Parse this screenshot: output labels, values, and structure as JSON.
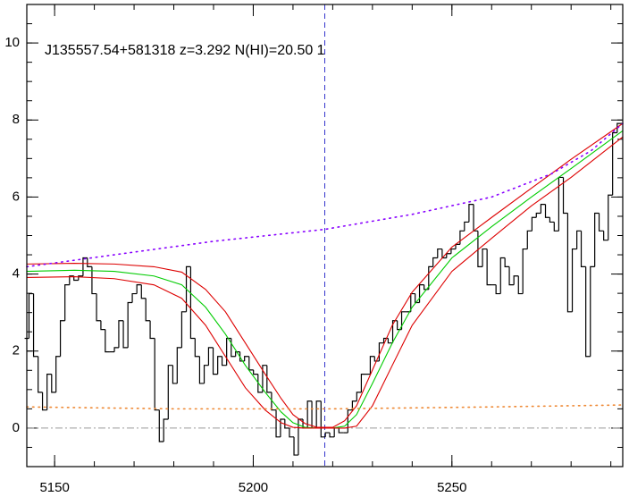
{
  "chart_data": {
    "type": "line",
    "title": "J135557.54+581318 z=3.292 N(HI)=20.50 1",
    "xlim": [
      5143,
      5293
    ],
    "ylim": [
      -1,
      11
    ],
    "xticks": [
      5150,
      5200,
      5250
    ],
    "yticks": [
      0,
      2,
      4,
      6,
      8,
      10
    ],
    "minor_xstep": 10,
    "minor_ystep": 0.5,
    "zero_line": 0,
    "vline": 5218,
    "series": [
      {
        "name": "flux",
        "style": "step",
        "color": "#000000",
        "x": [
          5143.0,
          5144.1,
          5145.3,
          5146.4,
          5147.5,
          5148.7,
          5149.8,
          5150.9,
          5152.0,
          5153.2,
          5154.3,
          5155.4,
          5156.6,
          5157.7,
          5158.8,
          5160.0,
          5161.1,
          5162.2,
          5163.3,
          5164.5,
          5165.6,
          5166.7,
          5167.9,
          5169.0,
          5170.1,
          5171.3,
          5172.4,
          5173.5,
          5174.6,
          5175.8,
          5176.9,
          5178.0,
          5179.2,
          5180.3,
          5181.4,
          5182.6,
          5183.7,
          5184.8,
          5185.9,
          5187.1,
          5188.2,
          5189.3,
          5190.5,
          5191.6,
          5192.7,
          5193.9,
          5195.0,
          5196.1,
          5197.2,
          5198.4,
          5199.5,
          5200.6,
          5201.8,
          5202.9,
          5204.0,
          5205.2,
          5206.3,
          5207.4,
          5208.5,
          5209.7,
          5210.8,
          5211.9,
          5213.1,
          5214.2,
          5215.3,
          5216.5,
          5217.6,
          5218.7,
          5219.8,
          5221.0,
          5222.1,
          5223.2,
          5224.4,
          5225.5,
          5226.6,
          5227.8,
          5228.9,
          5230.0,
          5231.1,
          5232.3,
          5233.4,
          5234.5,
          5235.7,
          5236.8,
          5237.9,
          5239.1,
          5240.2,
          5241.3,
          5242.4,
          5243.6,
          5244.7,
          5245.8,
          5247.0,
          5248.1,
          5249.2,
          5250.4,
          5251.5,
          5252.6,
          5253.7,
          5254.9,
          5256.0,
          5257.1,
          5258.3,
          5259.4,
          5260.5,
          5261.7,
          5262.8,
          5263.9,
          5265.0,
          5266.2,
          5267.3,
          5268.4,
          5269.6,
          5270.7,
          5271.8,
          5273.0,
          5274.1,
          5275.2,
          5276.3,
          5277.5,
          5278.6,
          5279.7,
          5280.9,
          5282.0,
          5283.1,
          5284.3,
          5285.4,
          5286.5,
          5287.6,
          5288.8,
          5289.9,
          5291.0,
          5292.2
        ],
        "values": [
          2.33,
          3.49,
          1.86,
          0.93,
          0.47,
          1.4,
          0.93,
          1.86,
          2.79,
          3.72,
          3.95,
          3.84,
          3.95,
          4.42,
          4.19,
          3.49,
          2.79,
          2.56,
          1.98,
          1.98,
          2.09,
          2.79,
          2.09,
          3.26,
          3.49,
          3.72,
          3.37,
          2.79,
          2.33,
          0.47,
          -0.35,
          0.23,
          1.63,
          1.16,
          2.09,
          3.02,
          4.19,
          2.33,
          1.86,
          1.16,
          1.63,
          2.09,
          1.4,
          1.86,
          1.63,
          2.33,
          1.86,
          1.98,
          1.74,
          1.86,
          1.51,
          1.4,
          0.93,
          1.63,
          0.93,
          0.47,
          -0.23,
          0.23,
          0.0,
          -0.23,
          -0.7,
          0.23,
          0.0,
          0.7,
          0.0,
          0.7,
          -0.23,
          -0.12,
          -0.23,
          0.0,
          -0.12,
          -0.12,
          0.47,
          0.7,
          0.93,
          1.4,
          1.4,
          1.86,
          1.74,
          2.21,
          2.33,
          2.21,
          2.79,
          2.56,
          3.02,
          3.02,
          3.49,
          3.26,
          3.72,
          3.6,
          4.19,
          4.42,
          4.65,
          4.42,
          4.53,
          4.65,
          4.77,
          5.12,
          5.35,
          5.81,
          5.12,
          4.19,
          4.65,
          3.72,
          3.72,
          3.49,
          4.42,
          4.19,
          3.72,
          3.95,
          3.49,
          4.65,
          5.12,
          5.47,
          5.58,
          5.81,
          5.47,
          5.35,
          5.12,
          6.51,
          5.58,
          3.02,
          4.65,
          5.12,
          4.19,
          1.86,
          4.19,
          5.58,
          5.12,
          4.88,
          6.05,
          7.67,
          7.91
        ]
      },
      {
        "name": "fit",
        "style": "solid",
        "color": "#00cc00",
        "x": [
          5143,
          5155,
          5165,
          5175,
          5182,
          5188,
          5193,
          5198,
          5203,
          5207,
          5210,
          5213,
          5216,
          5220,
          5223,
          5226,
          5230,
          5235,
          5240,
          5250,
          5260,
          5270,
          5280,
          5293
        ],
        "values": [
          4.07,
          4.1,
          4.07,
          3.95,
          3.72,
          3.14,
          2.44,
          1.63,
          0.93,
          0.42,
          0.14,
          0.02,
          0,
          0,
          0.05,
          0.35,
          1.16,
          2.21,
          3.14,
          4.42,
          5.23,
          6.0,
          6.74,
          7.72
        ]
      },
      {
        "name": "fit-upper",
        "style": "solid",
        "color": "#dd0000",
        "x": [
          5143,
          5155,
          5165,
          5175,
          5182,
          5188,
          5193,
          5198,
          5203,
          5207,
          5210,
          5213,
          5216,
          5220,
          5223,
          5226,
          5230,
          5235,
          5240,
          5250,
          5260,
          5270,
          5280,
          5293
        ],
        "values": [
          4.26,
          4.28,
          4.26,
          4.19,
          4.05,
          3.6,
          3.02,
          2.21,
          1.4,
          0.77,
          0.35,
          0.12,
          0.02,
          0.02,
          0.19,
          0.58,
          1.51,
          2.67,
          3.53,
          4.7,
          5.47,
          6.23,
          6.98,
          7.91
        ]
      },
      {
        "name": "fit-lower",
        "style": "solid",
        "color": "#dd0000",
        "x": [
          5143,
          5155,
          5165,
          5175,
          5182,
          5188,
          5193,
          5198,
          5203,
          5207,
          5210,
          5213,
          5216,
          5220,
          5223,
          5226,
          5230,
          5235,
          5240,
          5250,
          5260,
          5270,
          5280,
          5293
        ],
        "values": [
          3.91,
          3.93,
          3.88,
          3.72,
          3.37,
          2.67,
          1.86,
          1.05,
          0.47,
          0.14,
          0.02,
          0,
          0,
          0,
          0,
          0.05,
          0.58,
          1.63,
          2.67,
          4.07,
          4.93,
          5.77,
          6.51,
          7.56
        ]
      },
      {
        "name": "continuum",
        "style": "dotted",
        "color": "#8800ff",
        "x": [
          5143,
          5165,
          5190,
          5218,
          5240,
          5260,
          5275,
          5285,
          5293
        ],
        "values": [
          4.19,
          4.5,
          4.85,
          5.16,
          5.55,
          6.0,
          6.6,
          7.2,
          7.91
        ]
      },
      {
        "name": "error",
        "style": "dotted",
        "color": "#ee8833",
        "x": [
          5143,
          5180,
          5220,
          5260,
          5293
        ],
        "values": [
          0.55,
          0.5,
          0.5,
          0.55,
          0.6
        ]
      }
    ]
  }
}
